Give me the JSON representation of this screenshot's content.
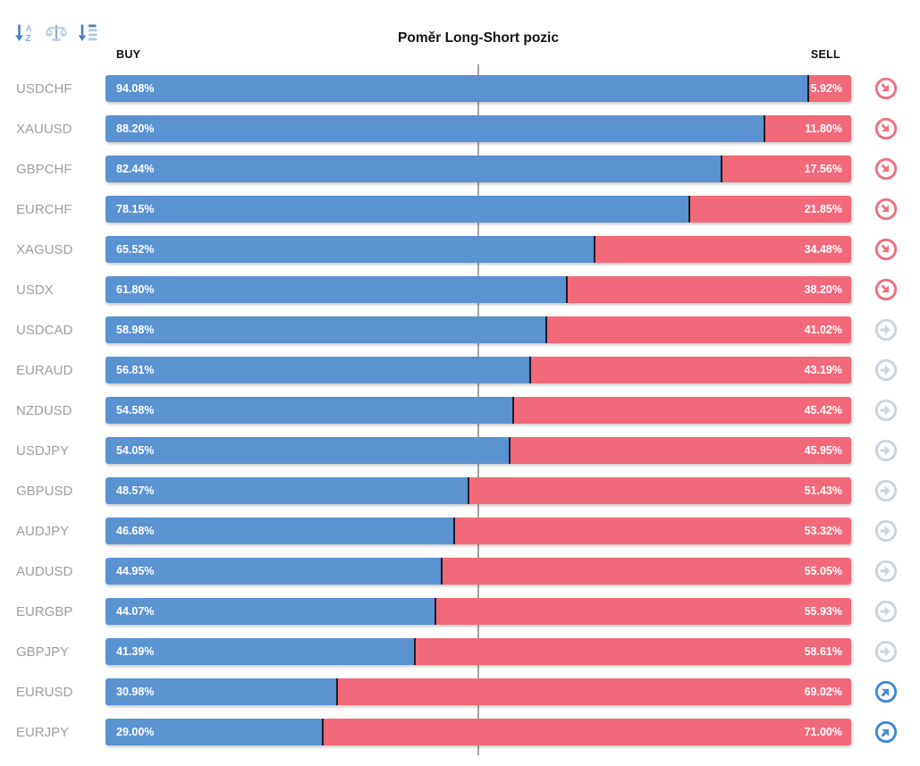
{
  "header": {
    "title": "Poměr Long-Short pozic",
    "buy_label": "BUY",
    "sell_label": "SELL"
  },
  "toolbar": {
    "icons": [
      {
        "name": "sort-alphabetical-icon"
      },
      {
        "name": "balance-scale-icon"
      },
      {
        "name": "sort-amount-icon"
      }
    ]
  },
  "colors": {
    "buy_bar": "#5b92d2",
    "sell_bar": "#f2697a",
    "bar_divider": "#1e1e1e",
    "sell_signal_icon": "#f0707e",
    "neutral_signal_icon": "#ccd3dd",
    "buy_signal_icon": "#4189d7",
    "center_line": "#a5a5a5",
    "pair_label": "#9e9e9e",
    "toolbar_icon_dark": "#4c80ba",
    "toolbar_icon_light": "#aec9e8"
  },
  "chart_data": {
    "type": "bar",
    "orientation": "horizontal-stacked",
    "title": "Poměr Long-Short pozic",
    "categories": [
      "USDCHF",
      "XAUUSD",
      "GBPCHF",
      "EURCHF",
      "XAGUSD",
      "USDX",
      "USDCAD",
      "EURAUD",
      "NZDUSD",
      "USDJPY",
      "GBPUSD",
      "AUDJPY",
      "AUDUSD",
      "EURGBP",
      "GBPJPY",
      "EURUSD",
      "EURJPY"
    ],
    "series": [
      {
        "name": "BUY",
        "color": "#5b92d2",
        "values": [
          94.08,
          88.2,
          82.44,
          78.15,
          65.52,
          61.8,
          58.98,
          56.81,
          54.58,
          54.05,
          48.57,
          46.68,
          44.95,
          44.07,
          41.39,
          30.98,
          29.0
        ]
      },
      {
        "name": "SELL",
        "color": "#f2697a",
        "values": [
          5.92,
          11.8,
          17.56,
          21.85,
          34.48,
          38.2,
          41.02,
          43.19,
          45.42,
          45.95,
          51.43,
          53.32,
          55.05,
          55.93,
          58.61,
          69.02,
          71.0
        ]
      }
    ],
    "signals": [
      "sell",
      "sell",
      "sell",
      "sell",
      "sell",
      "sell",
      "neutral",
      "neutral",
      "neutral",
      "neutral",
      "neutral",
      "neutral",
      "neutral",
      "neutral",
      "neutral",
      "buy",
      "buy"
    ],
    "xlim": [
      0,
      100
    ],
    "reference_line": {
      "value": 50,
      "color": "#a5a5a5"
    },
    "grid": false,
    "legend_position": "top (BUY left, SELL right)"
  },
  "rows": [
    {
      "pair": "USDCHF",
      "buy_pct": 94.08,
      "sell_pct": 5.92,
      "buy_label": "94.08%",
      "sell_label": "5.92%",
      "signal": "sell"
    },
    {
      "pair": "XAUUSD",
      "buy_pct": 88.2,
      "sell_pct": 11.8,
      "buy_label": "88.20%",
      "sell_label": "11.80%",
      "signal": "sell"
    },
    {
      "pair": "GBPCHF",
      "buy_pct": 82.44,
      "sell_pct": 17.56,
      "buy_label": "82.44%",
      "sell_label": "17.56%",
      "signal": "sell"
    },
    {
      "pair": "EURCHF",
      "buy_pct": 78.15,
      "sell_pct": 21.85,
      "buy_label": "78.15%",
      "sell_label": "21.85%",
      "signal": "sell"
    },
    {
      "pair": "XAGUSD",
      "buy_pct": 65.52,
      "sell_pct": 34.48,
      "buy_label": "65.52%",
      "sell_label": "34.48%",
      "signal": "sell"
    },
    {
      "pair": "USDX",
      "buy_pct": 61.8,
      "sell_pct": 38.2,
      "buy_label": "61.80%",
      "sell_label": "38.20%",
      "signal": "sell"
    },
    {
      "pair": "USDCAD",
      "buy_pct": 58.98,
      "sell_pct": 41.02,
      "buy_label": "58.98%",
      "sell_label": "41.02%",
      "signal": "neutral"
    },
    {
      "pair": "EURAUD",
      "buy_pct": 56.81,
      "sell_pct": 43.19,
      "buy_label": "56.81%",
      "sell_label": "43.19%",
      "signal": "neutral"
    },
    {
      "pair": "NZDUSD",
      "buy_pct": 54.58,
      "sell_pct": 45.42,
      "buy_label": "54.58%",
      "sell_label": "45.42%",
      "signal": "neutral"
    },
    {
      "pair": "USDJPY",
      "buy_pct": 54.05,
      "sell_pct": 45.95,
      "buy_label": "54.05%",
      "sell_label": "45.95%",
      "signal": "neutral"
    },
    {
      "pair": "GBPUSD",
      "buy_pct": 48.57,
      "sell_pct": 51.43,
      "buy_label": "48.57%",
      "sell_label": "51.43%",
      "signal": "neutral"
    },
    {
      "pair": "AUDJPY",
      "buy_pct": 46.68,
      "sell_pct": 53.32,
      "buy_label": "46.68%",
      "sell_label": "53.32%",
      "signal": "neutral"
    },
    {
      "pair": "AUDUSD",
      "buy_pct": 44.95,
      "sell_pct": 55.05,
      "buy_label": "44.95%",
      "sell_label": "55.05%",
      "signal": "neutral"
    },
    {
      "pair": "EURGBP",
      "buy_pct": 44.07,
      "sell_pct": 55.93,
      "buy_label": "44.07%",
      "sell_label": "55.93%",
      "signal": "neutral"
    },
    {
      "pair": "GBPJPY",
      "buy_pct": 41.39,
      "sell_pct": 58.61,
      "buy_label": "41.39%",
      "sell_label": "58.61%",
      "signal": "neutral"
    },
    {
      "pair": "EURUSD",
      "buy_pct": 30.98,
      "sell_pct": 69.02,
      "buy_label": "30.98%",
      "sell_label": "69.02%",
      "signal": "buy"
    },
    {
      "pair": "EURJPY",
      "buy_pct": 29.0,
      "sell_pct": 71.0,
      "buy_label": "29.00%",
      "sell_label": "71.00%",
      "signal": "buy"
    }
  ]
}
